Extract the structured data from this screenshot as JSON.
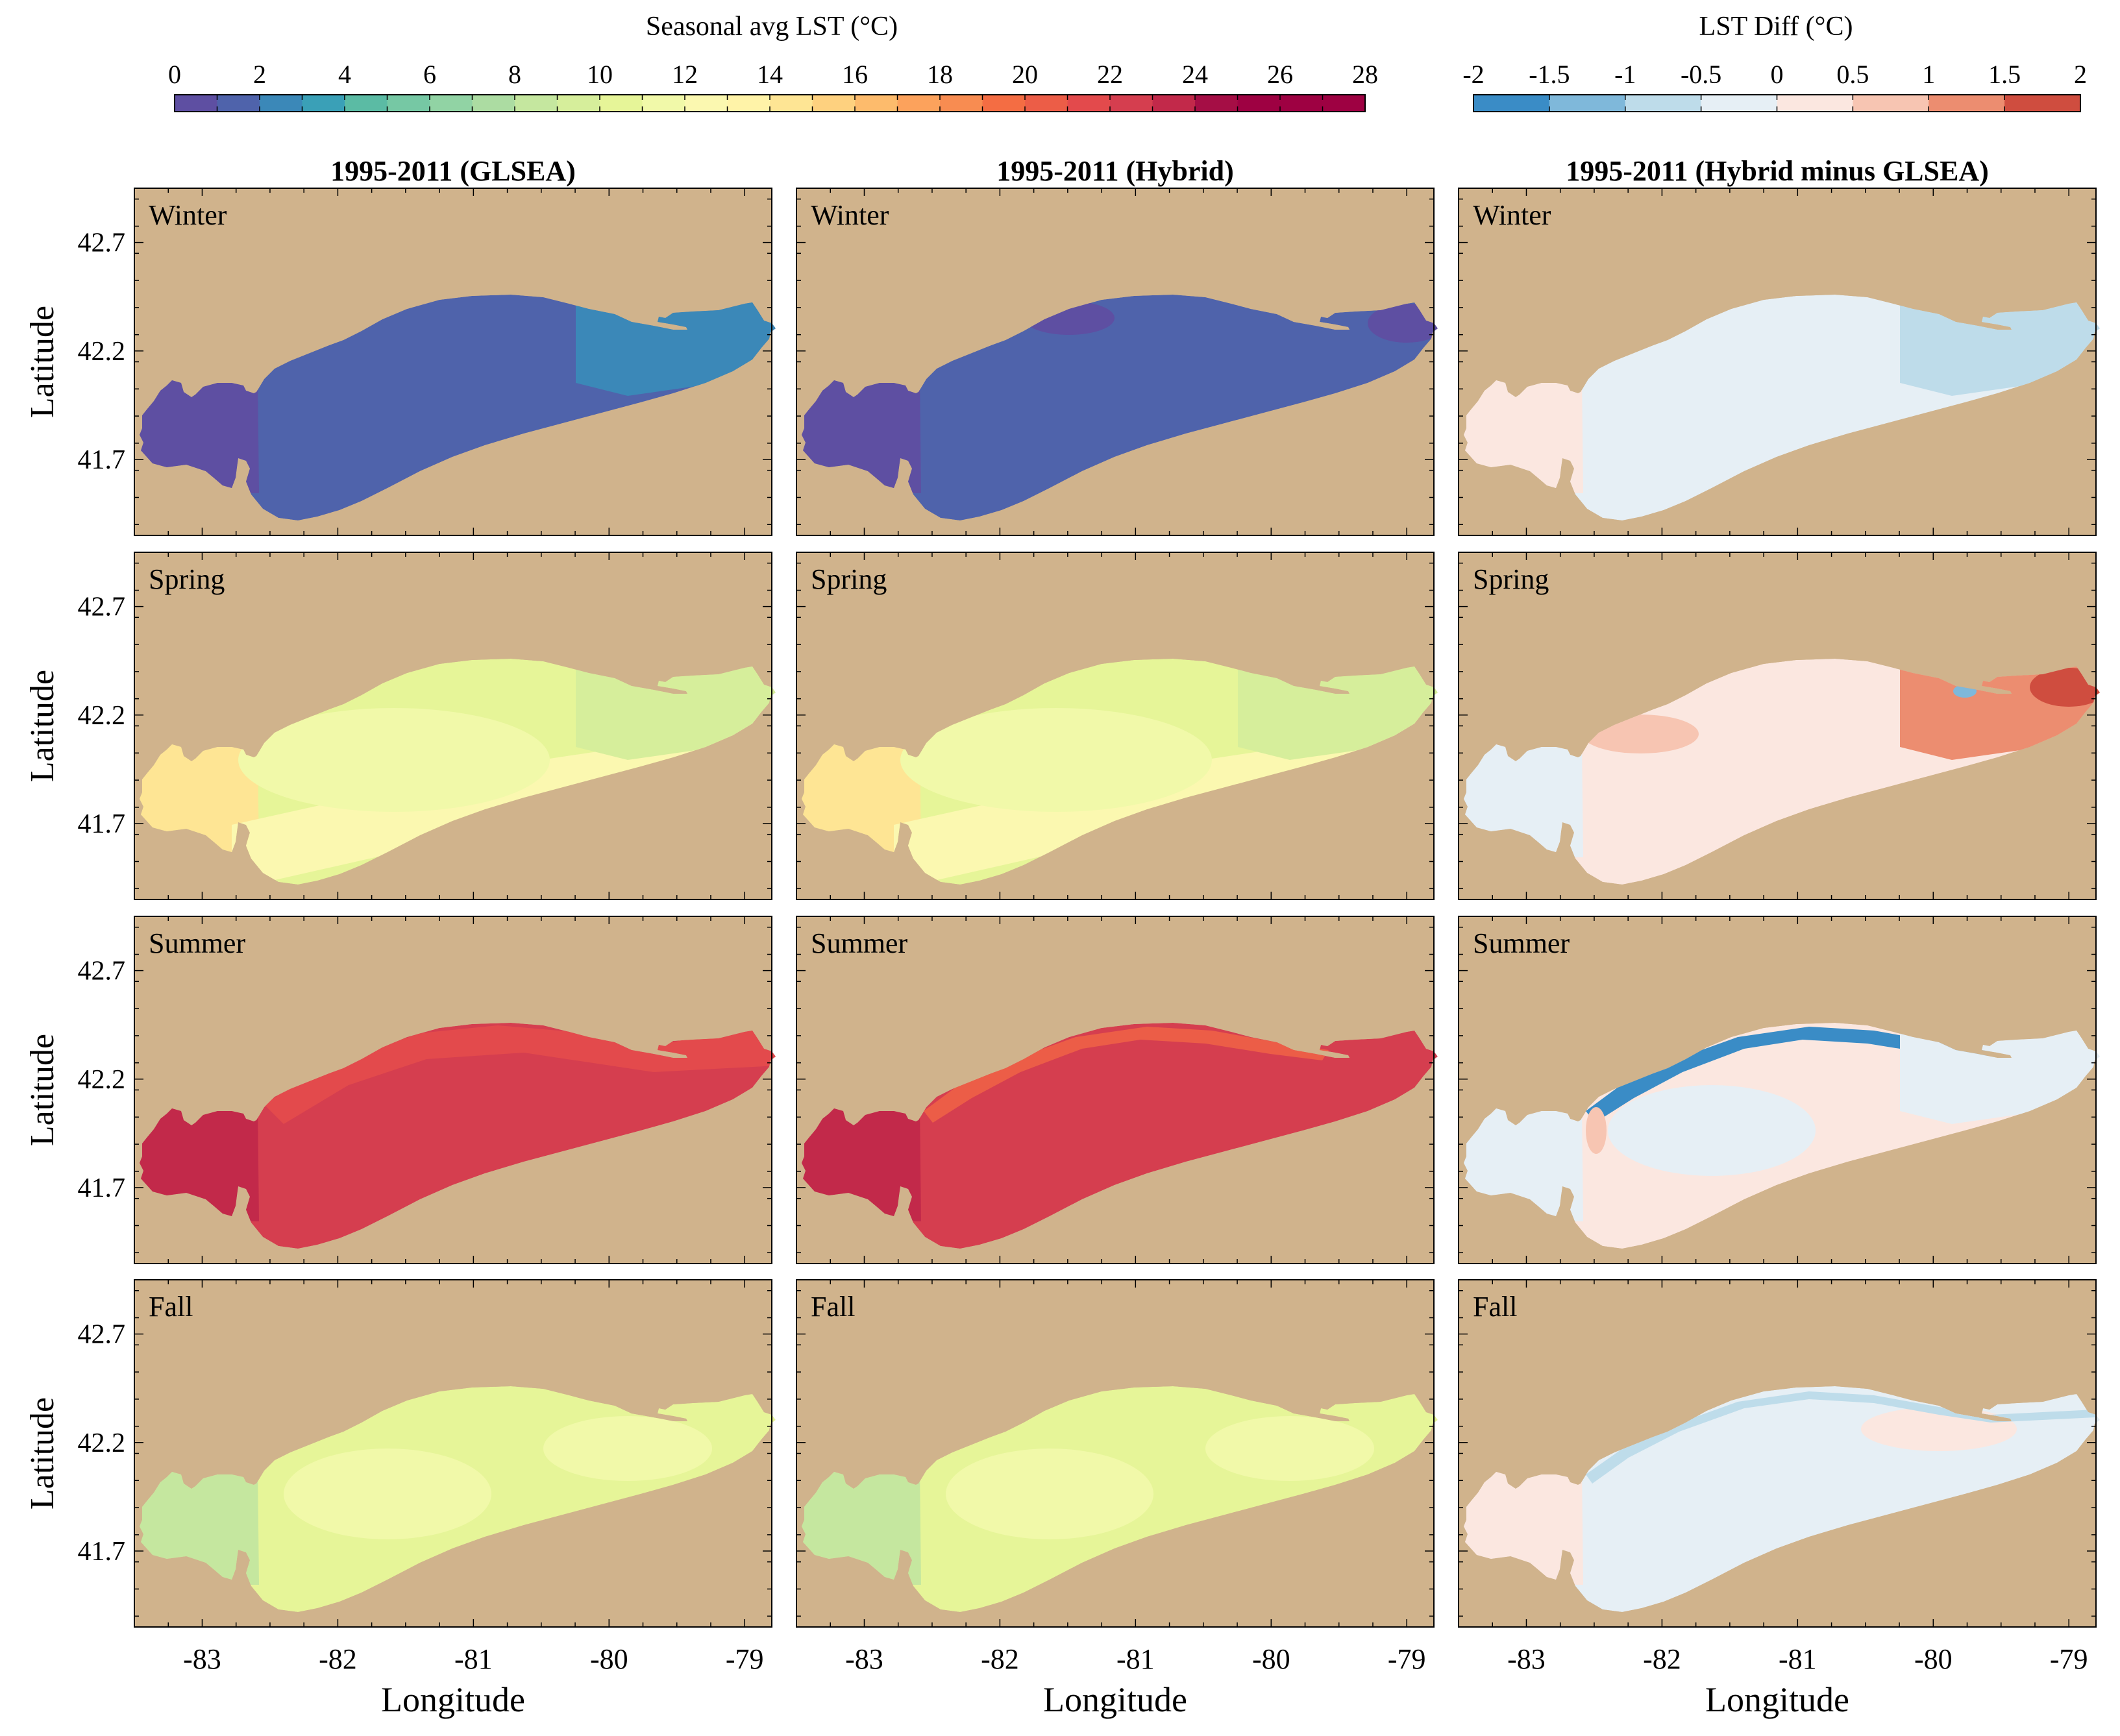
{
  "figure": {
    "lst_colorbar_title": "Seasonal avg LST (°C)",
    "diff_colorbar_title": "LST Diff (°C)"
  },
  "chart_data": {
    "type": "heatmap",
    "description_kind": "small-multiples map grid (Lake Erie), 4 seasons x 3 products",
    "columns": [
      "1995-2011 (GLSEA)",
      "1995-2011 (Hybrid)",
      "1995-2011 (Hybrid minus GLSEA)"
    ],
    "rows": [
      "Winter",
      "Spring",
      "Summer",
      "Fall"
    ],
    "xlabel": "Longitude",
    "ylabel": "Latitude",
    "xlim": [
      -83.5,
      -78.8
    ],
    "ylim": [
      41.35,
      42.95
    ],
    "xticks": [
      -83,
      -82,
      -81,
      -80,
      -79
    ],
    "xtick_labels": [
      "-83",
      "-82",
      "-81",
      "-80",
      "-79"
    ],
    "yticks": [
      41.7,
      42.2,
      42.7
    ],
    "ytick_labels": [
      "41.7",
      "42.2",
      "42.7"
    ],
    "land_color": "#d0b38c",
    "lst_colorbar": {
      "min": 0,
      "max": 28,
      "step": 1,
      "tick_values": [
        0,
        2,
        4,
        6,
        8,
        10,
        12,
        14,
        16,
        18,
        20,
        22,
        24,
        26,
        28
      ],
      "tick_labels": [
        "0",
        "2",
        "4",
        "6",
        "8",
        "10",
        "12",
        "14",
        "16",
        "18",
        "20",
        "22",
        "24",
        "26",
        "28"
      ],
      "colors": [
        "#5e4fa2",
        "#4f63ab",
        "#3b88b8",
        "#3aa0b7",
        "#5bbba4",
        "#76c8a4",
        "#91d3a4",
        "#acdca2",
        "#c5e79f",
        "#d6ee9b",
        "#e6f598",
        "#f1f9a9",
        "#fbf8b0",
        "#fff3a8",
        "#fee594",
        "#fed17f",
        "#fdbb6c",
        "#fca25c",
        "#f88c51",
        "#f46d43",
        "#ec5d47",
        "#e34a4c",
        "#d53e4f",
        "#c2294a",
        "#a50e45",
        "#9e0142",
        "#9e0142",
        "#9e0142"
      ]
    },
    "diff_colorbar": {
      "min": -2,
      "max": 2,
      "step": 0.5,
      "tick_values": [
        -2,
        -1.5,
        -1,
        -0.5,
        0,
        0.5,
        1,
        1.5,
        2
      ],
      "tick_labels": [
        "-2",
        "-1.5",
        "-1",
        "-0.5",
        "0",
        "0.5",
        "1",
        "1.5",
        "2"
      ],
      "colors": [
        "#3a8cc6",
        "#7fb8da",
        "#bedcea",
        "#e6eff5",
        "#fbe7e0",
        "#f7c5b2",
        "#ec8d70",
        "#cf4d3f"
      ]
    },
    "panels": [
      {
        "row": "Winter",
        "column": "GLSEA",
        "label": "Winter",
        "base_value": 1.5,
        "patches": [
          {
            "where": "western basin",
            "value": 0.5
          },
          {
            "where": "eastern basin",
            "value": 2.5
          }
        ]
      },
      {
        "row": "Winter",
        "column": "Hybrid",
        "label": "Winter",
        "base_value": 1.5,
        "patches": [
          {
            "where": "western basin",
            "value": 0.5
          },
          {
            "where": "north-central shore",
            "value": 0.5
          },
          {
            "where": "far east",
            "value": 0.5
          }
        ]
      },
      {
        "row": "Winter",
        "column": "Hybrid minus GLSEA",
        "label": "Winter",
        "base_value": -0.25,
        "patches": [
          {
            "where": "western basin",
            "value": 0.25
          },
          {
            "where": "eastern basin",
            "value": -0.75
          }
        ]
      },
      {
        "row": "Spring",
        "column": "GLSEA",
        "label": "Spring",
        "base_value": 10.5,
        "patches": [
          {
            "where": "western basin",
            "value": 14.5
          },
          {
            "where": "south shore",
            "value": 12.5
          },
          {
            "where": "central core",
            "value": 11.5
          },
          {
            "where": "eastern basin",
            "value": 9.5
          }
        ]
      },
      {
        "row": "Spring",
        "column": "Hybrid",
        "label": "Spring",
        "base_value": 10.5,
        "patches": [
          {
            "where": "western basin",
            "value": 14.5
          },
          {
            "where": "south shore",
            "value": 12.5
          },
          {
            "where": "central core",
            "value": 11.5
          },
          {
            "where": "eastern basin",
            "value": 9.5
          }
        ]
      },
      {
        "row": "Spring",
        "column": "Hybrid minus GLSEA",
        "label": "Spring",
        "base_value": 0.25,
        "patches": [
          {
            "where": "western basin",
            "value": -0.25
          },
          {
            "where": "north-central",
            "value": 0.75
          },
          {
            "where": "eastern basin",
            "value": 1.0
          },
          {
            "where": "far east",
            "value": 1.75
          },
          {
            "where": "Long Point",
            "value": -1.5
          }
        ]
      },
      {
        "row": "Summer",
        "column": "GLSEA",
        "label": "Summer",
        "base_value": 22.5,
        "patches": [
          {
            "where": "western basin",
            "value": 23.5
          },
          {
            "where": "north shore",
            "value": 21.5
          }
        ]
      },
      {
        "row": "Summer",
        "column": "Hybrid",
        "label": "Summer",
        "base_value": 22.5,
        "patches": [
          {
            "where": "western basin",
            "value": 23.5
          },
          {
            "where": "north shore band",
            "value": 20.5
          }
        ]
      },
      {
        "row": "Summer",
        "column": "Hybrid minus GLSEA",
        "label": "Summer",
        "base_value": 0.25,
        "patches": [
          {
            "where": "western basin",
            "value": -0.25
          },
          {
            "where": "north shore band",
            "value": -1.75
          },
          {
            "where": "central interior",
            "value": -0.25
          },
          {
            "where": "eastern basin",
            "value": -0.25
          },
          {
            "where": "west-central spot",
            "value": 0.75
          }
        ]
      },
      {
        "row": "Fall",
        "column": "GLSEA",
        "label": "Fall",
        "base_value": 10.5,
        "patches": [
          {
            "where": "western basin",
            "value": 8.5
          },
          {
            "where": "central interior",
            "value": 11.5
          },
          {
            "where": "eastern interior",
            "value": 11.5
          }
        ]
      },
      {
        "row": "Fall",
        "column": "Hybrid",
        "label": "Fall",
        "base_value": 10.5,
        "patches": [
          {
            "where": "western basin",
            "value": 8.5
          },
          {
            "where": "central interior",
            "value": 11.5
          },
          {
            "where": "eastern interior",
            "value": 11.5
          }
        ]
      },
      {
        "row": "Fall",
        "column": "Hybrid minus GLSEA",
        "label": "Fall",
        "base_value": -0.25,
        "patches": [
          {
            "where": "western basin",
            "value": 0.25
          },
          {
            "where": "north-east interior",
            "value": 0.25
          },
          {
            "where": "north shore edge",
            "value": -0.75
          }
        ]
      }
    ]
  }
}
